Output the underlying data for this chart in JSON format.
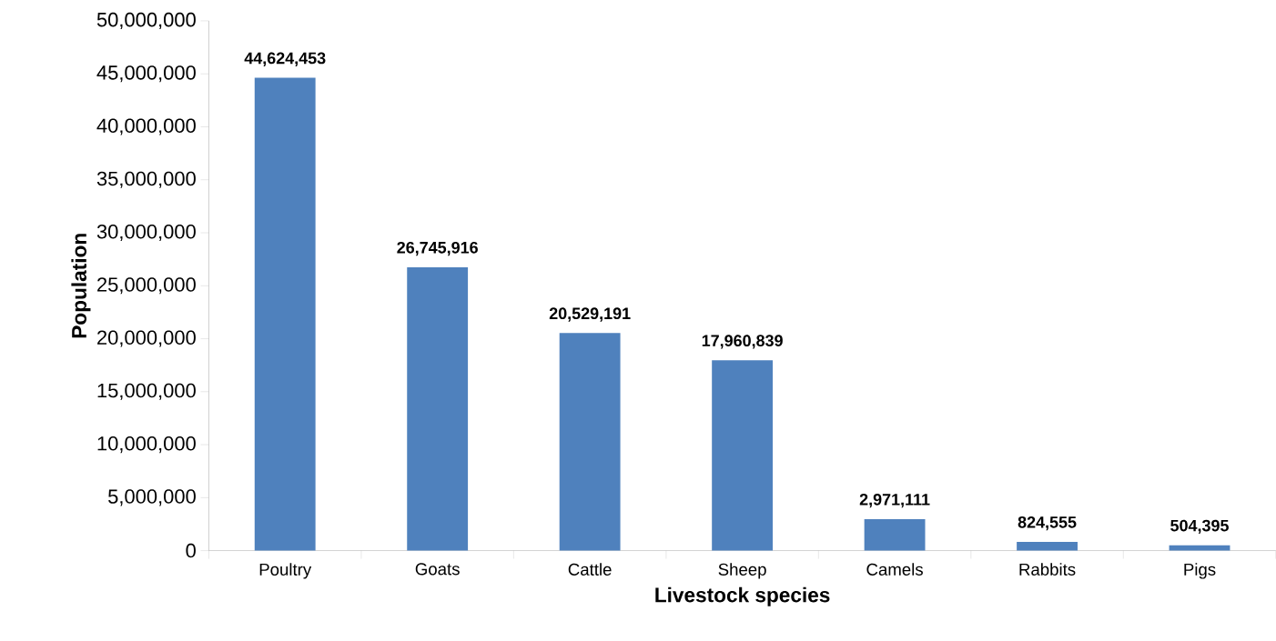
{
  "chart_data": {
    "type": "bar",
    "xlabel": "Livestock species",
    "ylabel": "Population",
    "categories": [
      "Poultry",
      "Goats",
      "Cattle",
      "Sheep",
      "Camels",
      "Rabbits",
      "Pigs"
    ],
    "values": [
      44624453,
      26745916,
      20529191,
      17960839,
      2971111,
      824555,
      504395
    ],
    "value_labels": [
      "44,624,453",
      "26,745,916",
      "20,529,191",
      "17,960,839",
      "2,971,111",
      "824,555",
      "504,395"
    ],
    "color": "#4f81bd",
    "ylim": [
      0,
      50000000
    ],
    "yticks": [
      0,
      {
        "value": 5000000,
        "label": "5,000,000"
      },
      {
        "value": 10000000,
        "label": "10,000,000"
      },
      {
        "value": 15000000,
        "label": "15,000,000"
      },
      {
        "value": 20000000,
        "label": "20,000,000"
      },
      {
        "value": 25000000,
        "label": "25,000,000"
      },
      {
        "value": 30000000,
        "label": "30,000,000"
      },
      {
        "value": 35000000,
        "label": "35,000,000"
      },
      {
        "value": 40000000,
        "label": "40,000,000"
      },
      {
        "value": 45000000,
        "label": "45,000,000"
      },
      {
        "value": 50000000,
        "label": "50,000,000"
      }
    ]
  }
}
